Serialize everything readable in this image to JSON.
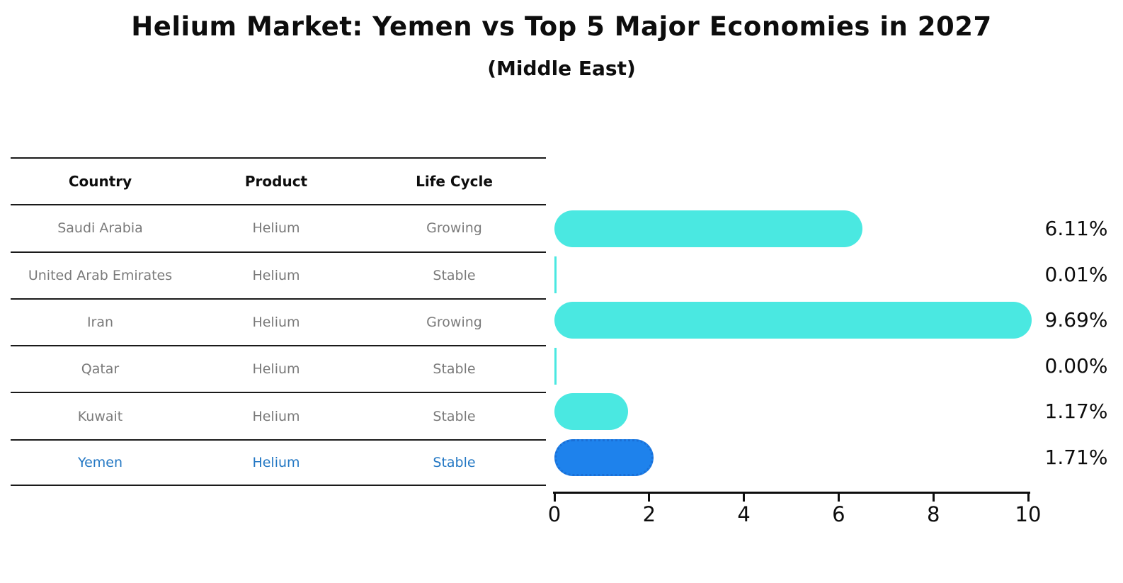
{
  "title": "Helium Market: Yemen vs Top 5 Major Economies in 2027",
  "subtitle": "(Middle East)",
  "table": {
    "headers": [
      "Country",
      "Product",
      "Life Cycle"
    ],
    "rows": [
      {
        "country": "Saudi Arabia",
        "product": "Helium",
        "life_cycle": "Growing",
        "highlight": false
      },
      {
        "country": "United Arab Emirates",
        "product": "Helium",
        "life_cycle": "Stable",
        "highlight": false
      },
      {
        "country": "Iran",
        "product": "Helium",
        "life_cycle": "Growing",
        "highlight": false
      },
      {
        "country": "Qatar",
        "product": "Helium",
        "life_cycle": "Stable",
        "highlight": false
      },
      {
        "country": "Kuwait",
        "product": "Helium",
        "life_cycle": "Stable",
        "highlight": false
      },
      {
        "country": "Yemen",
        "product": "Helium",
        "life_cycle": "Stable",
        "highlight": true
      }
    ]
  },
  "chart_data": {
    "type": "bar",
    "orientation": "horizontal",
    "title": "Helium Market: Yemen vs Top 5 Major Economies in 2027",
    "subtitle": "(Middle East)",
    "categories": [
      "Saudi Arabia",
      "United Arab Emirates",
      "Iran",
      "Qatar",
      "Kuwait",
      "Yemen"
    ],
    "values": [
      6.11,
      0.01,
      9.69,
      0.0,
      1.17,
      1.71
    ],
    "value_labels": [
      "6.11%",
      "0.01%",
      "9.69%",
      "0.00%",
      "1.17%",
      "1.71%"
    ],
    "xlim": [
      0,
      10
    ],
    "x_ticks": [
      0,
      2,
      4,
      6,
      8,
      10
    ],
    "grid": false,
    "legend": false,
    "highlight_index": 5,
    "colors": {
      "bar": "#4AE8E1",
      "highlight_bar": "#1E82EC",
      "highlight_border": "#1A6FD6",
      "highlight_text": "#2478C4",
      "row_text": "#7A7A7A",
      "axis_text": "#0D0D0D"
    }
  }
}
